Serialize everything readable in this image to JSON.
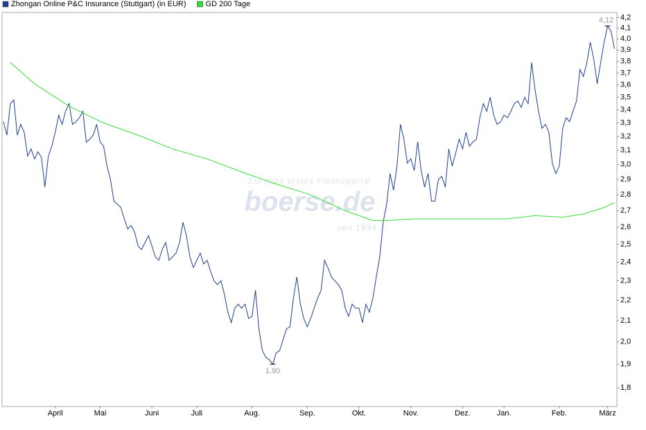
{
  "watermark": {
    "tagline": "Europas erstes Finanzportal",
    "logo": "boerse.de",
    "since": "seit 1994"
  },
  "chart_data": {
    "type": "line",
    "ylog": true,
    "grid": false,
    "legend": "top-left",
    "xlim": [
      -0.4,
      177.7
    ],
    "xticks": [
      {
        "value": 15,
        "label": "April"
      },
      {
        "value": 28,
        "label": "Mai"
      },
      {
        "value": 43,
        "label": "Juni"
      },
      {
        "value": 56,
        "label": "Juli"
      },
      {
        "value": 72,
        "label": "Aug."
      },
      {
        "value": 88,
        "label": "Sep."
      },
      {
        "value": 103,
        "label": "Okt."
      },
      {
        "value": 118,
        "label": "Nov."
      },
      {
        "value": 133,
        "label": "Dez."
      },
      {
        "value": 145,
        "label": "Jan."
      },
      {
        "value": 161,
        "label": "Feb."
      },
      {
        "value": 175,
        "label": "März"
      }
    ],
    "ylim": [
      1.725,
      4.25
    ],
    "yticks": [
      {
        "value": 1.8,
        "label": "1,8"
      },
      {
        "value": 1.9,
        "label": "1,9"
      },
      {
        "value": 2.0,
        "label": "2,0"
      },
      {
        "value": 2.1,
        "label": "2,1"
      },
      {
        "value": 2.2,
        "label": "2,2"
      },
      {
        "value": 2.3,
        "label": "2,3"
      },
      {
        "value": 2.4,
        "label": "2,4"
      },
      {
        "value": 2.5,
        "label": "2,5"
      },
      {
        "value": 2.6,
        "label": "2,6"
      },
      {
        "value": 2.7,
        "label": "2,7"
      },
      {
        "value": 2.8,
        "label": "2,8"
      },
      {
        "value": 2.9,
        "label": "2,9"
      },
      {
        "value": 3.0,
        "label": "3,0"
      },
      {
        "value": 3.1,
        "label": "3,1"
      },
      {
        "value": 3.2,
        "label": "3,2"
      },
      {
        "value": 3.3,
        "label": "3,3"
      },
      {
        "value": 3.4,
        "label": "3,4"
      },
      {
        "value": 3.5,
        "label": "3,5"
      },
      {
        "value": 3.6,
        "label": "3,6"
      },
      {
        "value": 3.7,
        "label": "3,7"
      },
      {
        "value": 3.8,
        "label": "3,8"
      },
      {
        "value": 3.9,
        "label": "3,9"
      },
      {
        "value": 4.0,
        "label": "4,0"
      },
      {
        "value": 4.1,
        "label": "4,1"
      },
      {
        "value": 4.2,
        "label": "4,2"
      }
    ],
    "series": [
      {
        "name": "Zhongan Online P&C Insurance (Stuttgart) (in EUR)",
        "color": "#1c3f8f",
        "values": [
          3.31,
          3.21,
          3.45,
          3.48,
          3.21,
          3.29,
          3.23,
          3.06,
          3.11,
          3.04,
          3.09,
          3.05,
          2.85,
          3.06,
          3.13,
          3.23,
          3.36,
          3.29,
          3.39,
          3.45,
          3.29,
          3.31,
          3.34,
          3.39,
          3.16,
          3.18,
          3.21,
          3.29,
          3.16,
          3.13,
          2.99,
          2.9,
          2.76,
          2.74,
          2.72,
          2.65,
          2.59,
          2.61,
          2.57,
          2.49,
          2.47,
          2.51,
          2.55,
          2.49,
          2.43,
          2.41,
          2.47,
          2.51,
          2.41,
          2.43,
          2.45,
          2.51,
          2.63,
          2.55,
          2.43,
          2.37,
          2.41,
          2.45,
          2.39,
          2.41,
          2.35,
          2.3,
          2.28,
          2.3,
          2.23,
          2.14,
          2.09,
          2.16,
          2.18,
          2.16,
          2.18,
          2.11,
          2.12,
          2.25,
          2.06,
          1.96,
          1.93,
          1.92,
          1.9,
          1.95,
          1.96,
          2.01,
          2.06,
          2.07,
          2.21,
          2.32,
          2.18,
          2.11,
          2.07,
          2.11,
          2.16,
          2.21,
          2.25,
          2.41,
          2.37,
          2.32,
          2.3,
          2.28,
          2.25,
          2.16,
          2.12,
          2.18,
          2.16,
          2.16,
          2.09,
          2.18,
          2.14,
          2.21,
          2.32,
          2.43,
          2.63,
          2.74,
          2.94,
          2.83,
          2.99,
          3.29,
          3.18,
          3.01,
          3.04,
          2.96,
          3.16,
          2.96,
          2.85,
          2.94,
          2.76,
          2.76,
          2.9,
          2.92,
          2.85,
          3.11,
          2.99,
          3.08,
          3.18,
          3.11,
          3.23,
          3.13,
          3.16,
          3.18,
          3.34,
          3.45,
          3.39,
          3.5,
          3.36,
          3.29,
          3.31,
          3.36,
          3.34,
          3.39,
          3.45,
          3.47,
          3.42,
          3.5,
          3.45,
          3.79,
          3.56,
          3.39,
          3.26,
          3.29,
          3.23,
          3.01,
          2.94,
          2.99,
          3.26,
          3.34,
          3.31,
          3.39,
          3.47,
          3.73,
          3.67,
          3.79,
          3.97,
          3.82,
          3.61,
          3.79,
          3.97,
          4.12,
          4.07,
          3.91
        ],
        "annotations": [
          {
            "value": 4.12,
            "label": "4,12"
          },
          {
            "value": 1.9,
            "label": "1,90"
          }
        ]
      },
      {
        "name": "GD 200 Tage",
        "color": "#33dd33",
        "x": [
          2,
          9,
          19,
          29,
          39,
          49,
          59,
          69,
          79,
          89,
          99,
          107,
          111,
          119,
          130,
          140,
          146,
          154,
          162,
          168,
          174,
          177
        ],
        "values": [
          3.79,
          3.61,
          3.43,
          3.3,
          3.21,
          3.11,
          3.04,
          2.95,
          2.87,
          2.8,
          2.7,
          2.64,
          2.64,
          2.65,
          2.65,
          2.65,
          2.65,
          2.67,
          2.66,
          2.68,
          2.72,
          2.75
        ]
      }
    ]
  }
}
